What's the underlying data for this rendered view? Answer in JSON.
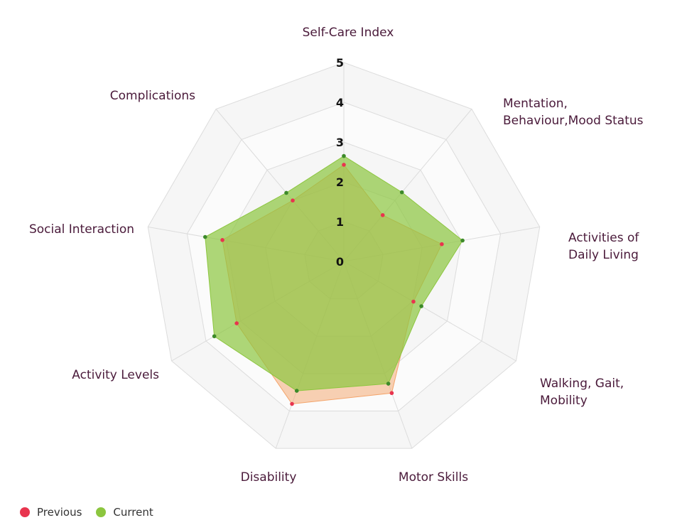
{
  "chart_data": {
    "type": "radar",
    "categories": [
      "Self-Care Index",
      "Mentation,\nBehaviour,Mood Status",
      "Activities of\nDaily Living",
      "Walking, Gait,\nMobility",
      "Motor Skills",
      "Disability",
      "Activity Levels",
      "Social Interaction",
      "Complications"
    ],
    "series": [
      {
        "name": "Previous",
        "color": "#e8344e",
        "fill": "#f4a46a",
        "values": [
          2.43,
          1.52,
          2.5,
          2.02,
          3.52,
          3.81,
          3.11,
          3.1,
          2.0
        ]
      },
      {
        "name": "Current",
        "color": "#8cc63f",
        "fill": "#8cc63f",
        "values": [
          2.65,
          2.27,
          3.03,
          2.25,
          3.27,
          3.46,
          3.76,
          3.54,
          2.25
        ]
      }
    ],
    "ylim": [
      0,
      5
    ],
    "yticks": [
      0,
      1,
      2,
      3,
      4,
      5
    ],
    "legend": "bottom-left"
  }
}
